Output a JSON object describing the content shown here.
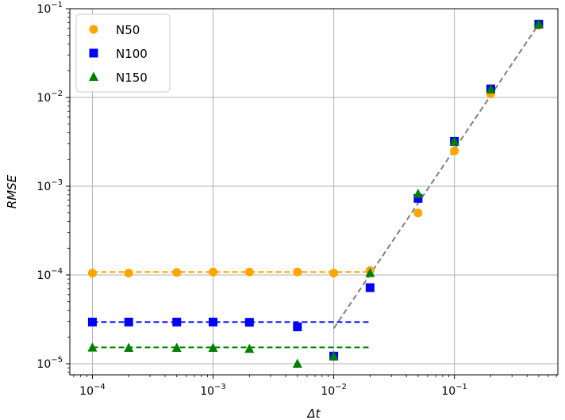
{
  "chart_data": {
    "type": "scatter",
    "xlabel": "Δt",
    "ylabel": "RMSE",
    "xscale": "log",
    "yscale": "log",
    "xlim": [
      6.5e-05,
      0.72
    ],
    "ylim": [
      7.5e-06,
      0.1
    ],
    "grid": true,
    "legend_position": "top-left",
    "x_ticks": [
      {
        "value": 0.0001,
        "base": "10",
        "exp": "−4"
      },
      {
        "value": 0.001,
        "base": "10",
        "exp": "−3"
      },
      {
        "value": 0.01,
        "base": "10",
        "exp": "−2"
      },
      {
        "value": 0.1,
        "base": "10",
        "exp": "−1"
      }
    ],
    "y_ticks": [
      {
        "value": 1e-05,
        "base": "10",
        "exp": "−5"
      },
      {
        "value": 0.0001,
        "base": "10",
        "exp": "−4"
      },
      {
        "value": 0.001,
        "base": "10",
        "exp": "−3"
      },
      {
        "value": 0.01,
        "base": "10",
        "exp": "−2"
      },
      {
        "value": 0.1,
        "base": "10",
        "exp": "−1"
      }
    ],
    "series": [
      {
        "name": "N50",
        "marker": "circle",
        "color": "#ffa500",
        "x": [
          0.0001,
          0.0002,
          0.0005,
          0.001,
          0.002,
          0.005,
          0.01,
          0.02,
          0.05,
          0.1,
          0.2,
          0.5
        ],
        "y": [
          0.000105,
          0.000105,
          0.000107,
          0.000108,
          0.000108,
          0.000108,
          0.000105,
          0.000112,
          0.0005,
          0.0025,
          0.011,
          0.065
        ]
      },
      {
        "name": "N100",
        "marker": "square",
        "color": "#0000ff",
        "x": [
          0.0001,
          0.0002,
          0.0005,
          0.001,
          0.002,
          0.005,
          0.01,
          0.02,
          0.05,
          0.1,
          0.2,
          0.5
        ],
        "y": [
          2.95e-05,
          2.95e-05,
          2.95e-05,
          2.95e-05,
          2.93e-05,
          2.6e-05,
          1.22e-05,
          7.2e-05,
          0.00073,
          0.0032,
          0.0125,
          0.067
        ]
      },
      {
        "name": "N150",
        "marker": "triangle",
        "color": "#008000",
        "x": [
          0.0001,
          0.0002,
          0.0005,
          0.001,
          0.002,
          0.005,
          0.01,
          0.02,
          0.05,
          0.1,
          0.2,
          0.5
        ],
        "y": [
          1.52e-05,
          1.51e-05,
          1.51e-05,
          1.51e-05,
          1.47e-05,
          1e-05,
          1.22e-05,
          0.000105,
          0.00082,
          0.0032,
          0.0123,
          0.067
        ]
      }
    ],
    "reference_lines": [
      {
        "color": "#ffa500",
        "style": "dashed",
        "x": [
          0.0001,
          0.02
        ],
        "y": [
          0.000108,
          0.000108
        ]
      },
      {
        "color": "#0000ff",
        "style": "dashed",
        "x": [
          0.0001,
          0.02
        ],
        "y": [
          2.95e-05,
          2.95e-05
        ]
      },
      {
        "color": "#008000",
        "style": "dashed",
        "x": [
          0.0001,
          0.02
        ],
        "y": [
          1.53e-05,
          1.53e-05
        ]
      },
      {
        "color": "#808080",
        "style": "dashed",
        "x": [
          0.01,
          0.5
        ],
        "y": [
          2.5e-05,
          0.067
        ]
      }
    ]
  }
}
